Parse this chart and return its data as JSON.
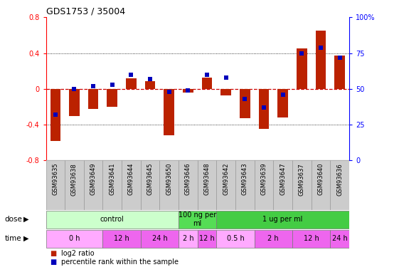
{
  "title": "GDS1753 / 35004",
  "samples": [
    "GSM93635",
    "GSM93638",
    "GSM93649",
    "GSM93641",
    "GSM93644",
    "GSM93645",
    "GSM93650",
    "GSM93646",
    "GSM93648",
    "GSM93642",
    "GSM93643",
    "GSM93639",
    "GSM93647",
    "GSM93637",
    "GSM93640",
    "GSM93636"
  ],
  "log2_ratio": [
    -0.58,
    -0.3,
    -0.22,
    -0.2,
    0.12,
    0.09,
    -0.52,
    -0.04,
    0.13,
    -0.07,
    -0.33,
    -0.45,
    -0.32,
    0.45,
    0.65,
    0.37
  ],
  "percentile": [
    32,
    50,
    52,
    53,
    60,
    57,
    48,
    49,
    60,
    58,
    43,
    37,
    46,
    75,
    79,
    72
  ],
  "dose_groups": [
    {
      "label": "control",
      "start": 0,
      "end": 7,
      "color": "#ccffcc"
    },
    {
      "label": "100 ng per\nml",
      "start": 7,
      "end": 9,
      "color": "#55dd55"
    },
    {
      "label": "1 ug per ml",
      "start": 9,
      "end": 16,
      "color": "#44cc44"
    }
  ],
  "time_groups": [
    {
      "label": "0 h",
      "start": 0,
      "end": 3,
      "color": "#ffaaff"
    },
    {
      "label": "12 h",
      "start": 3,
      "end": 5,
      "color": "#ee66ee"
    },
    {
      "label": "24 h",
      "start": 5,
      "end": 7,
      "color": "#ee66ee"
    },
    {
      "label": "2 h",
      "start": 7,
      "end": 8,
      "color": "#ffaaff"
    },
    {
      "label": "12 h",
      "start": 8,
      "end": 9,
      "color": "#ee66ee"
    },
    {
      "label": "0.5 h",
      "start": 9,
      "end": 11,
      "color": "#ffaaff"
    },
    {
      "label": "2 h",
      "start": 11,
      "end": 13,
      "color": "#ee66ee"
    },
    {
      "label": "12 h",
      "start": 13,
      "end": 15,
      "color": "#ee66ee"
    },
    {
      "label": "24 h",
      "start": 15,
      "end": 16,
      "color": "#ee66ee"
    }
  ],
  "ylim": [
    -0.8,
    0.8
  ],
  "y2lim": [
    0,
    100
  ],
  "yticks": [
    -0.8,
    -0.4,
    0.0,
    0.4,
    0.8
  ],
  "y2ticks": [
    0,
    25,
    50,
    75,
    100
  ],
  "bar_color": "#bb2200",
  "dot_color": "#0000bb",
  "zero_line_color": "#cc0000",
  "bg_color": "#ffffff",
  "label_bg": "#cccccc",
  "label_edge": "#999999"
}
